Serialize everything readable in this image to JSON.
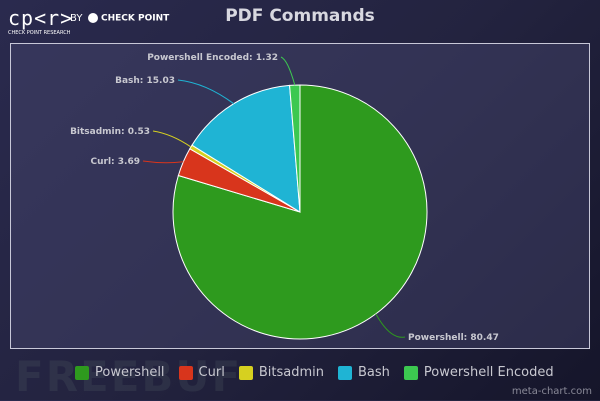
{
  "logo": {
    "brand": "cp<r>",
    "by": "BY",
    "partner": "CHECK POINT",
    "subtitle": "CHECK POINT RESEARCH"
  },
  "watermark": "FREEBUF",
  "credit": "meta-chart.com",
  "chart_data": {
    "type": "pie",
    "title": "PDF Commands",
    "categories": [
      "Powershell",
      "Curl",
      "Bitsadmin",
      "Bash",
      "Powershell Encoded"
    ],
    "values": [
      80.47,
      3.69,
      0.53,
      15.03,
      1.32
    ],
    "labels": [
      "Powershell: 80.47",
      "Curl: 3.69",
      "Bitsadmin: 0.53",
      "Bash: 15.03",
      "Powershell Encoded: 1.32"
    ],
    "colors": [
      "#2e9a1e",
      "#d8351c",
      "#d6d020",
      "#1fb4d4",
      "#3cc850"
    ],
    "legend_position": "bottom"
  }
}
